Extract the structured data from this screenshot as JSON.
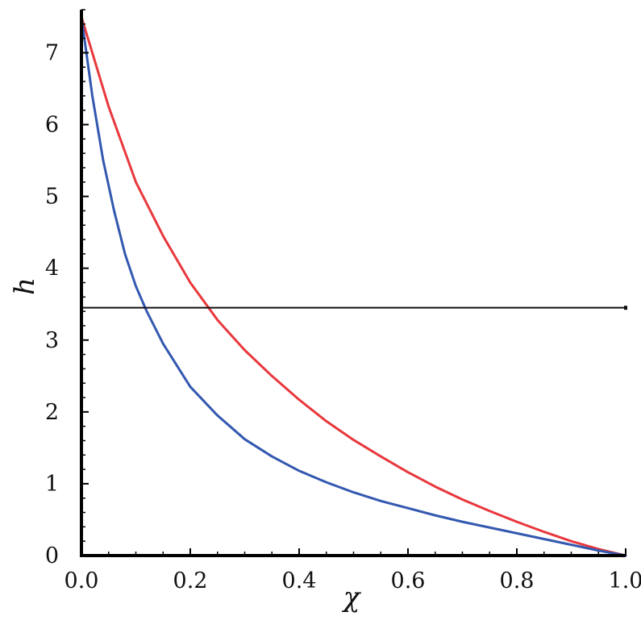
{
  "chart_data": {
    "type": "line",
    "title": "",
    "xlabel": "χ",
    "ylabel": "h",
    "xlim": [
      0,
      1
    ],
    "ylim": [
      0,
      7.6
    ],
    "grid": false,
    "x_ticks": [
      "0.0",
      "0.2",
      "0.4",
      "0.6",
      "0.8",
      "1.0"
    ],
    "y_ticks": [
      "0",
      "1",
      "2",
      "3",
      "4",
      "5",
      "6",
      "7"
    ],
    "series": [
      {
        "color": "#e8383d",
        "x": [
          0,
          0.05,
          0.1,
          0.15,
          0.2,
          0.25,
          0.3,
          0.35,
          0.4,
          0.45,
          0.5,
          0.55,
          0.6,
          0.65,
          0.7,
          0.75,
          0.8,
          0.85,
          0.9,
          0.95,
          1.0
        ],
        "y": [
          7.5,
          6.25,
          5.2,
          4.45,
          3.8,
          3.28,
          2.86,
          2.5,
          2.17,
          1.87,
          1.61,
          1.38,
          1.16,
          0.96,
          0.78,
          0.62,
          0.47,
          0.33,
          0.2,
          0.09,
          0
        ]
      },
      {
        "color": "#3358b0",
        "x": [
          0,
          0.02,
          0.04,
          0.06,
          0.08,
          0.1,
          0.12,
          0.15,
          0.2,
          0.25,
          0.3,
          0.35,
          0.4,
          0.45,
          0.5,
          0.55,
          0.6,
          0.65,
          0.7,
          0.75,
          0.8,
          0.85,
          0.9,
          0.95,
          1.0
        ],
        "y": [
          7.5,
          6.4,
          5.5,
          4.8,
          4.2,
          3.75,
          3.4,
          2.95,
          2.35,
          1.95,
          1.62,
          1.38,
          1.18,
          1.02,
          0.88,
          0.76,
          0.66,
          0.56,
          0.47,
          0.39,
          0.31,
          0.23,
          0.15,
          0.07,
          0
        ]
      },
      {
        "color": "#111111",
        "x": [
          0,
          1
        ],
        "y": [
          3.45,
          3.45
        ]
      }
    ]
  }
}
